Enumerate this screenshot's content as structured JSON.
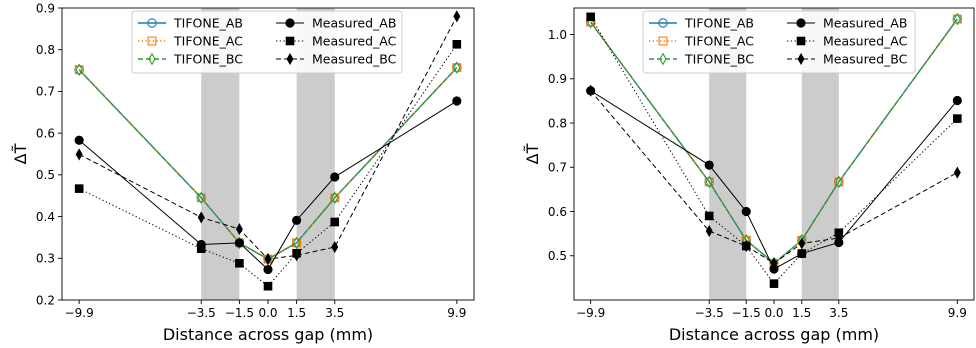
{
  "chart_data": [
    {
      "type": "line",
      "xlabel": "Distance across gap (mm)",
      "ylabel": "ΔT̃",
      "xlim": [
        -10.8,
        10.8
      ],
      "ylim": [
        0.2,
        0.9
      ],
      "xticks": [
        -9.9,
        -3.5,
        -1.5,
        0.0,
        1.5,
        3.5,
        9.9
      ],
      "xtick_labels": [
        "−9.9",
        "−3.5",
        "−1.5",
        "0.0",
        "1.5",
        "3.5",
        "9.9"
      ],
      "yticks": [
        0.2,
        0.3,
        0.4,
        0.5,
        0.6,
        0.7,
        0.8,
        0.9
      ],
      "ytick_labels": [
        "0.2",
        "0.3",
        "0.4",
        "0.5",
        "0.6",
        "0.7",
        "0.8",
        "0.9"
      ],
      "shaded_regions": [
        [
          -3.5,
          -1.5
        ],
        [
          1.5,
          3.5
        ]
      ],
      "legend_position": "top-center",
      "series": [
        {
          "name": "TIFONE_AB",
          "color": "#1f77b4",
          "style": "solid",
          "marker": "circle-open",
          "x": [
            -9.9,
            -3.5,
            -1.5,
            0.0,
            1.5,
            3.5,
            9.9
          ],
          "y": [
            0.752,
            0.445,
            0.337,
            0.298,
            0.337,
            0.445,
            0.757
          ]
        },
        {
          "name": "TIFONE_AC",
          "color": "#ff7f0e",
          "style": "dotted",
          "marker": "square-open",
          "x": [
            -9.9,
            -3.5,
            -1.5,
            0.0,
            1.5,
            3.5,
            9.9
          ],
          "y": [
            0.752,
            0.445,
            0.337,
            0.298,
            0.337,
            0.445,
            0.757
          ]
        },
        {
          "name": "TIFONE_BC",
          "color": "#2ca02c",
          "style": "dashed",
          "marker": "diamond-open",
          "x": [
            -9.9,
            -3.5,
            -1.5,
            0.0,
            1.5,
            3.5,
            9.9
          ],
          "y": [
            0.752,
            0.445,
            0.337,
            0.298,
            0.337,
            0.445,
            0.757
          ]
        },
        {
          "name": "Measured_AB",
          "color": "#000000",
          "style": "solid",
          "marker": "circle",
          "x": [
            -9.9,
            -3.5,
            -1.5,
            0.0,
            1.5,
            3.5,
            9.9
          ],
          "y": [
            0.583,
            0.333,
            0.337,
            0.273,
            0.391,
            0.495,
            0.677
          ]
        },
        {
          "name": "Measured_AC",
          "color": "#000000",
          "style": "dotted",
          "marker": "square",
          "x": [
            -9.9,
            -3.5,
            -1.5,
            0.0,
            1.5,
            3.5,
            9.9
          ],
          "y": [
            0.467,
            0.323,
            0.288,
            0.233,
            0.312,
            0.387,
            0.813
          ]
        },
        {
          "name": "Measured_BC",
          "color": "#000000",
          "style": "dashed",
          "marker": "diamond",
          "x": [
            -9.9,
            -3.5,
            -1.5,
            0.0,
            1.5,
            3.5,
            9.9
          ],
          "y": [
            0.549,
            0.398,
            0.37,
            0.298,
            0.307,
            0.327,
            0.88
          ]
        }
      ]
    },
    {
      "type": "line",
      "xlabel": "Distance across gap (mm)",
      "ylabel": "ΔT̃",
      "xlim": [
        -10.8,
        10.8
      ],
      "ylim": [
        0.4,
        1.06
      ],
      "xticks": [
        -9.9,
        -3.5,
        -1.5,
        0.0,
        1.5,
        3.5,
        9.9
      ],
      "xtick_labels": [
        "−9.9",
        "−3.5",
        "−1.5",
        "0.0",
        "1.5",
        "3.5",
        "9.9"
      ],
      "yticks": [
        0.5,
        0.6,
        0.7,
        0.8,
        0.9,
        1.0
      ],
      "ytick_labels": [
        "0.5",
        "0.6",
        "0.7",
        "0.8",
        "0.9",
        "1.0"
      ],
      "shaded_regions": [
        [
          -3.5,
          -1.5
        ],
        [
          1.5,
          3.5
        ]
      ],
      "legend_position": "top-center",
      "series": [
        {
          "name": "TIFONE_AB",
          "color": "#1f77b4",
          "style": "solid",
          "marker": "circle-open",
          "x": [
            -9.9,
            -3.5,
            -1.5,
            0.0,
            1.5,
            3.5,
            9.9
          ],
          "y": [
            1.028,
            0.667,
            0.535,
            0.483,
            0.535,
            0.667,
            1.035
          ]
        },
        {
          "name": "TIFONE_AC",
          "color": "#ff7f0e",
          "style": "dotted",
          "marker": "square-open",
          "x": [
            -9.9,
            -3.5,
            -1.5,
            0.0,
            1.5,
            3.5,
            9.9
          ],
          "y": [
            1.028,
            0.667,
            0.535,
            0.483,
            0.535,
            0.667,
            1.035
          ]
        },
        {
          "name": "TIFONE_BC",
          "color": "#2ca02c",
          "style": "dashed",
          "marker": "diamond-open",
          "x": [
            -9.9,
            -3.5,
            -1.5,
            0.0,
            1.5,
            3.5,
            9.9
          ],
          "y": [
            1.028,
            0.667,
            0.535,
            0.483,
            0.535,
            0.667,
            1.035
          ]
        },
        {
          "name": "Measured_AB",
          "color": "#000000",
          "style": "solid",
          "marker": "circle",
          "x": [
            -9.9,
            -3.5,
            -1.5,
            0.0,
            1.5,
            3.5,
            9.9
          ],
          "y": [
            0.873,
            0.705,
            0.6,
            0.47,
            0.505,
            0.53,
            0.851
          ]
        },
        {
          "name": "Measured_AC",
          "color": "#000000",
          "style": "dotted",
          "marker": "square",
          "x": [
            -9.9,
            -3.5,
            -1.5,
            0.0,
            1.5,
            3.5,
            9.9
          ],
          "y": [
            1.04,
            0.59,
            0.522,
            0.437,
            0.505,
            0.552,
            0.81
          ]
        },
        {
          "name": "Measured_BC",
          "color": "#000000",
          "style": "dashed",
          "marker": "diamond",
          "x": [
            -9.9,
            -3.5,
            -1.5,
            0.0,
            1.5,
            3.5,
            9.9
          ],
          "y": [
            0.873,
            0.556,
            0.522,
            0.483,
            0.528,
            0.54,
            0.688
          ]
        }
      ]
    }
  ]
}
